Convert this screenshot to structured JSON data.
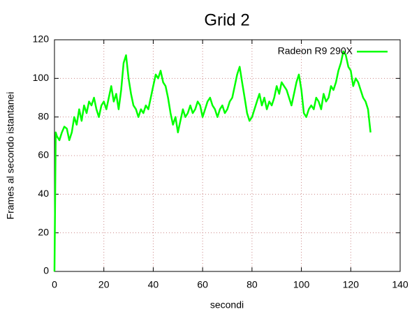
{
  "chart_data": {
    "type": "line",
    "title": "Grid 2",
    "x_label": "secondi",
    "y_label": "Frames al secondo istantanei",
    "x": [
      0,
      0.5,
      1,
      2,
      3,
      4,
      5,
      6,
      7,
      8,
      9,
      10,
      11,
      12,
      13,
      14,
      15,
      16,
      17,
      18,
      19,
      20,
      21,
      22,
      23,
      24,
      25,
      26,
      27,
      28,
      29,
      30,
      31,
      32,
      33,
      34,
      35,
      36,
      37,
      38,
      39,
      40,
      41,
      42,
      43,
      44,
      45,
      46,
      47,
      48,
      49,
      50,
      51,
      52,
      53,
      54,
      55,
      56,
      57,
      58,
      59,
      60,
      61,
      62,
      63,
      64,
      65,
      66,
      67,
      68,
      69,
      70,
      71,
      72,
      73,
      74,
      75,
      76,
      77,
      78,
      79,
      80,
      81,
      82,
      83,
      84,
      85,
      86,
      87,
      88,
      89,
      90,
      91,
      92,
      93,
      94,
      95,
      96,
      97,
      98,
      99,
      100,
      101,
      102,
      103,
      104,
      105,
      106,
      107,
      108,
      109,
      110,
      111,
      112,
      113,
      114,
      115,
      116,
      117,
      118,
      119,
      120,
      121,
      122,
      123,
      124,
      125,
      126,
      127,
      128
    ],
    "series": [
      {
        "name": "Radeon R9 290X",
        "color": "#00ff00",
        "values": [
          0,
          72,
          70,
          68,
          72,
          75,
          74,
          68,
          72,
          80,
          76,
          84,
          78,
          86,
          82,
          88,
          86,
          90,
          84,
          80,
          86,
          88,
          84,
          90,
          96,
          88,
          92,
          84,
          94,
          108,
          112,
          100,
          92,
          86,
          84,
          80,
          84,
          82,
          86,
          84,
          90,
          96,
          102,
          100,
          104,
          98,
          96,
          90,
          82,
          76,
          80,
          72,
          78,
          84,
          80,
          82,
          86,
          82,
          84,
          88,
          86,
          80,
          84,
          88,
          90,
          86,
          84,
          80,
          84,
          86,
          82,
          84,
          88,
          90,
          96,
          102,
          106,
          98,
          90,
          82,
          78,
          80,
          84,
          88,
          92,
          86,
          90,
          84,
          88,
          86,
          90,
          96,
          92,
          98,
          96,
          94,
          90,
          86,
          92,
          98,
          102,
          94,
          82,
          80,
          84,
          86,
          84,
          90,
          88,
          84,
          92,
          88,
          90,
          96,
          94,
          98,
          104,
          108,
          114,
          112,
          106,
          104,
          96,
          100,
          98,
          94,
          90,
          88,
          84,
          72
        ]
      }
    ],
    "xlim": [
      0,
      140
    ],
    "xticks": [
      0,
      20,
      40,
      60,
      80,
      100,
      120,
      140
    ],
    "ylim": [
      0,
      120
    ],
    "yticks": [
      0,
      20,
      40,
      60,
      80,
      100,
      120
    ],
    "grid": true,
    "legend": "top-right"
  }
}
